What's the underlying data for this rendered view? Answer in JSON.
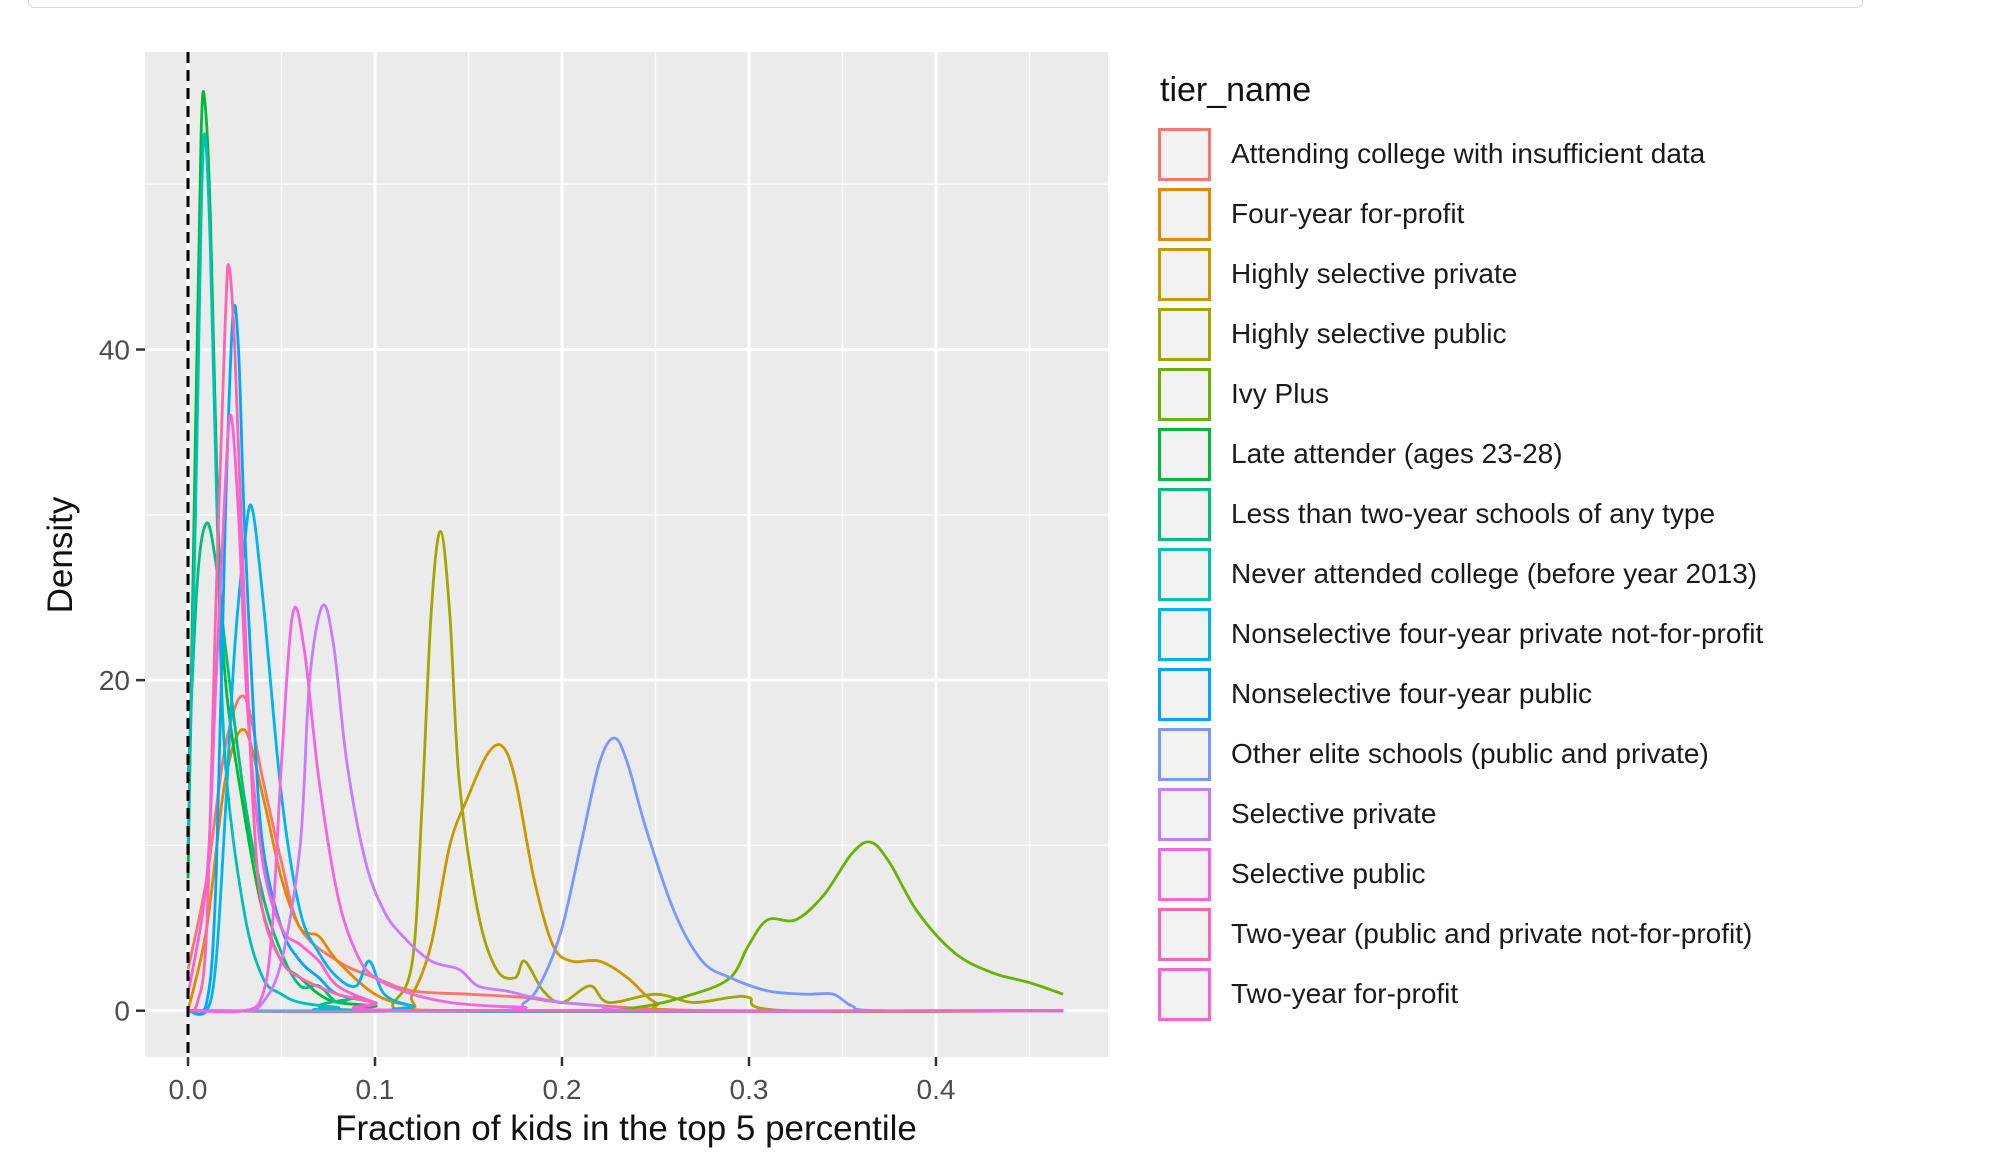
{
  "chart_data": {
    "type": "line",
    "subtype": "density",
    "xlabel": "Fraction of kids in the top 5 percentile",
    "ylabel": "Density",
    "xlim": [
      -0.023,
      0.492
    ],
    "ylim": [
      -2.8,
      58.0
    ],
    "x_ticks": [
      0.0,
      0.1,
      0.2,
      0.3,
      0.4
    ],
    "x_tick_labels": [
      "0.0",
      "0.1",
      "0.2",
      "0.3",
      "0.4"
    ],
    "y_ticks": [
      0,
      20,
      40
    ],
    "y_tick_labels": [
      "0",
      "20",
      "40"
    ],
    "grid": true,
    "vline": {
      "x": 0.0,
      "style": "dashed",
      "color": "#000000"
    },
    "legend": {
      "title": "tier_name",
      "position": "right"
    },
    "series": [
      {
        "name": "Attending college with insufficient data",
        "color": "#F8766D",
        "points": [
          [
            0.0,
            2.5
          ],
          [
            0.01,
            8
          ],
          [
            0.02,
            16
          ],
          [
            0.03,
            19
          ],
          [
            0.04,
            14
          ],
          [
            0.05,
            9
          ],
          [
            0.06,
            5
          ],
          [
            0.08,
            3
          ],
          [
            0.1,
            2
          ],
          [
            0.12,
            1.2
          ],
          [
            0.15,
            1
          ],
          [
            0.18,
            0.8
          ],
          [
            0.2,
            0.5
          ],
          [
            0.25,
            0.1
          ],
          [
            0.3,
            0
          ],
          [
            0.468,
            0
          ]
        ]
      },
      {
        "name": "Four-year for-profit",
        "color": "#E58700",
        "points": [
          [
            0.0,
            0
          ],
          [
            0.01,
            5
          ],
          [
            0.02,
            14
          ],
          [
            0.03,
            17
          ],
          [
            0.04,
            13
          ],
          [
            0.05,
            8
          ],
          [
            0.06,
            5
          ],
          [
            0.07,
            4.5
          ],
          [
            0.08,
            3
          ],
          [
            0.1,
            1
          ],
          [
            0.12,
            0.3
          ],
          [
            0.15,
            0
          ],
          [
            0.468,
            0
          ]
        ]
      },
      {
        "name": "Highly selective private",
        "color": "#C99800",
        "points": [
          [
            0.0,
            0
          ],
          [
            0.11,
            0
          ],
          [
            0.12,
            1
          ],
          [
            0.13,
            4
          ],
          [
            0.14,
            10
          ],
          [
            0.15,
            13
          ],
          [
            0.16,
            15.5
          ],
          [
            0.168,
            16
          ],
          [
            0.175,
            14
          ],
          [
            0.185,
            8
          ],
          [
            0.195,
            4
          ],
          [
            0.205,
            3
          ],
          [
            0.22,
            3
          ],
          [
            0.235,
            2
          ],
          [
            0.25,
            0.5
          ],
          [
            0.27,
            0
          ],
          [
            0.468,
            0
          ]
        ]
      },
      {
        "name": "Highly selective public",
        "color": "#A3A500",
        "points": [
          [
            0.0,
            0
          ],
          [
            0.1,
            0
          ],
          [
            0.11,
            0.5
          ],
          [
            0.12,
            3
          ],
          [
            0.125,
            12
          ],
          [
            0.13,
            24
          ],
          [
            0.135,
            29
          ],
          [
            0.14,
            24
          ],
          [
            0.145,
            14
          ],
          [
            0.155,
            6
          ],
          [
            0.165,
            2.5
          ],
          [
            0.175,
            2
          ],
          [
            0.18,
            3
          ],
          [
            0.19,
            1.2
          ],
          [
            0.2,
            0.5
          ],
          [
            0.215,
            1.5
          ],
          [
            0.225,
            0.5
          ],
          [
            0.25,
            1
          ],
          [
            0.27,
            0.5
          ],
          [
            0.29,
            0.8
          ],
          [
            0.3,
            0.8
          ],
          [
            0.32,
            0
          ],
          [
            0.468,
            0
          ]
        ]
      },
      {
        "name": "Ivy Plus",
        "color": "#6BB100",
        "points": [
          [
            0.0,
            0
          ],
          [
            0.2,
            0
          ],
          [
            0.24,
            0.2
          ],
          [
            0.27,
            1
          ],
          [
            0.29,
            2
          ],
          [
            0.3,
            4
          ],
          [
            0.31,
            5.5
          ],
          [
            0.325,
            5.5
          ],
          [
            0.34,
            7
          ],
          [
            0.355,
            9.5
          ],
          [
            0.365,
            10.2
          ],
          [
            0.375,
            9
          ],
          [
            0.39,
            6
          ],
          [
            0.41,
            3.5
          ],
          [
            0.43,
            2.3
          ],
          [
            0.45,
            1.7
          ],
          [
            0.468,
            1
          ]
        ]
      },
      {
        "name": "Late attender (ages 23-28)",
        "color": "#00BA38",
        "points": [
          [
            0.0,
            8
          ],
          [
            0.004,
            35
          ],
          [
            0.007,
            53
          ],
          [
            0.009,
            55
          ],
          [
            0.012,
            48
          ],
          [
            0.016,
            30
          ],
          [
            0.02,
            20
          ],
          [
            0.03,
            12
          ],
          [
            0.04,
            6
          ],
          [
            0.05,
            3
          ],
          [
            0.06,
            2
          ],
          [
            0.07,
            1
          ],
          [
            0.08,
            0.5
          ],
          [
            0.1,
            0.3
          ],
          [
            0.12,
            0
          ],
          [
            0.468,
            0
          ]
        ]
      },
      {
        "name": "Less than two-year schools of any type",
        "color": "#00BF7D",
        "points": [
          [
            0.0,
            14
          ],
          [
            0.005,
            26
          ],
          [
            0.01,
            29.5
          ],
          [
            0.015,
            27
          ],
          [
            0.02,
            22
          ],
          [
            0.03,
            13
          ],
          [
            0.04,
            7
          ],
          [
            0.05,
            3.5
          ],
          [
            0.06,
            1.5
          ],
          [
            0.07,
            1.5
          ],
          [
            0.08,
            0.5
          ],
          [
            0.09,
            0.8
          ],
          [
            0.1,
            0
          ],
          [
            0.468,
            0
          ]
        ]
      },
      {
        "name": "Never attended college (before year 2013)",
        "color": "#00C0B8",
        "points": [
          [
            0.0,
            10
          ],
          [
            0.004,
            30
          ],
          [
            0.007,
            48
          ],
          [
            0.009,
            53
          ],
          [
            0.012,
            46
          ],
          [
            0.016,
            28
          ],
          [
            0.02,
            15
          ],
          [
            0.03,
            6
          ],
          [
            0.04,
            2
          ],
          [
            0.05,
            1
          ],
          [
            0.06,
            0.5
          ],
          [
            0.08,
            0.2
          ],
          [
            0.1,
            0
          ],
          [
            0.468,
            0
          ]
        ]
      },
      {
        "name": "Nonselective four-year private not-for-profit",
        "color": "#00B4EF",
        "points": [
          [
            0.0,
            0
          ],
          [
            0.01,
            0
          ],
          [
            0.015,
            3
          ],
          [
            0.02,
            12
          ],
          [
            0.025,
            22
          ],
          [
            0.03,
            28
          ],
          [
            0.034,
            30.5
          ],
          [
            0.04,
            25
          ],
          [
            0.05,
            13
          ],
          [
            0.06,
            6
          ],
          [
            0.07,
            3.5
          ],
          [
            0.08,
            2
          ],
          [
            0.09,
            1.5
          ],
          [
            0.097,
            3
          ],
          [
            0.105,
            1
          ],
          [
            0.12,
            0.3
          ],
          [
            0.14,
            0
          ],
          [
            0.468,
            0
          ]
        ]
      },
      {
        "name": "Nonselective four-year public",
        "color": "#00A5FF",
        "points": [
          [
            0.0,
            0
          ],
          [
            0.01,
            0.5
          ],
          [
            0.015,
            8
          ],
          [
            0.02,
            30
          ],
          [
            0.024,
            42
          ],
          [
            0.027,
            40
          ],
          [
            0.03,
            30
          ],
          [
            0.035,
            18
          ],
          [
            0.04,
            10
          ],
          [
            0.05,
            5
          ],
          [
            0.06,
            3
          ],
          [
            0.07,
            2
          ],
          [
            0.08,
            1
          ],
          [
            0.1,
            0.5
          ],
          [
            0.12,
            0
          ],
          [
            0.468,
            0
          ]
        ]
      },
      {
        "name": "Other elite schools (public and private)",
        "color": "#7997FF",
        "points": [
          [
            0.0,
            0
          ],
          [
            0.16,
            0
          ],
          [
            0.18,
            0.5
          ],
          [
            0.19,
            2
          ],
          [
            0.2,
            5
          ],
          [
            0.21,
            10
          ],
          [
            0.22,
            15
          ],
          [
            0.228,
            16.5
          ],
          [
            0.235,
            15
          ],
          [
            0.245,
            11
          ],
          [
            0.26,
            6
          ],
          [
            0.275,
            3
          ],
          [
            0.29,
            2
          ],
          [
            0.31,
            1.2
          ],
          [
            0.33,
            1
          ],
          [
            0.345,
            1
          ],
          [
            0.355,
            0.3
          ],
          [
            0.37,
            0
          ],
          [
            0.468,
            0
          ]
        ]
      },
      {
        "name": "Selective private",
        "color": "#C77CFF",
        "points": [
          [
            0.0,
            0
          ],
          [
            0.03,
            0
          ],
          [
            0.04,
            0.5
          ],
          [
            0.05,
            3
          ],
          [
            0.06,
            10
          ],
          [
            0.065,
            20
          ],
          [
            0.072,
            24.5
          ],
          [
            0.078,
            22
          ],
          [
            0.085,
            15
          ],
          [
            0.095,
            9
          ],
          [
            0.105,
            6
          ],
          [
            0.115,
            4.5
          ],
          [
            0.13,
            3
          ],
          [
            0.145,
            2.5
          ],
          [
            0.155,
            1.5
          ],
          [
            0.17,
            1.2
          ],
          [
            0.185,
            0.8
          ],
          [
            0.2,
            0.5
          ],
          [
            0.22,
            0.3
          ],
          [
            0.25,
            0
          ],
          [
            0.468,
            0
          ]
        ]
      },
      {
        "name": "Selective public",
        "color": "#F564E3",
        "points": [
          [
            0.0,
            0
          ],
          [
            0.03,
            0
          ],
          [
            0.04,
            1
          ],
          [
            0.045,
            5
          ],
          [
            0.05,
            15
          ],
          [
            0.056,
            24
          ],
          [
            0.062,
            22
          ],
          [
            0.07,
            14
          ],
          [
            0.08,
            7
          ],
          [
            0.09,
            3.5
          ],
          [
            0.1,
            2
          ],
          [
            0.12,
            1
          ],
          [
            0.14,
            0.5
          ],
          [
            0.16,
            0.3
          ],
          [
            0.18,
            0.2
          ],
          [
            0.2,
            0
          ],
          [
            0.468,
            0
          ]
        ]
      },
      {
        "name": "Two-year (public and private not-for-profit)",
        "color": "#FF64B0",
        "points": [
          [
            0.0,
            0
          ],
          [
            0.005,
            0.5
          ],
          [
            0.01,
            5
          ],
          [
            0.015,
            25
          ],
          [
            0.02,
            42
          ],
          [
            0.022,
            45
          ],
          [
            0.025,
            40
          ],
          [
            0.03,
            25
          ],
          [
            0.035,
            12
          ],
          [
            0.04,
            6
          ],
          [
            0.05,
            3
          ],
          [
            0.06,
            2
          ],
          [
            0.08,
            1
          ],
          [
            0.1,
            0.5
          ],
          [
            0.12,
            0
          ],
          [
            0.468,
            0
          ]
        ]
      },
      {
        "name": "Two-year for-profit",
        "color": "#FB61D7",
        "points": [
          [
            0.0,
            1
          ],
          [
            0.01,
            8
          ],
          [
            0.015,
            20
          ],
          [
            0.02,
            32
          ],
          [
            0.023,
            36
          ],
          [
            0.027,
            30
          ],
          [
            0.032,
            18
          ],
          [
            0.04,
            9
          ],
          [
            0.05,
            5
          ],
          [
            0.06,
            4
          ],
          [
            0.07,
            3
          ],
          [
            0.08,
            1.5
          ],
          [
            0.1,
            0.5
          ],
          [
            0.12,
            0
          ],
          [
            0.468,
            0
          ]
        ]
      }
    ]
  }
}
